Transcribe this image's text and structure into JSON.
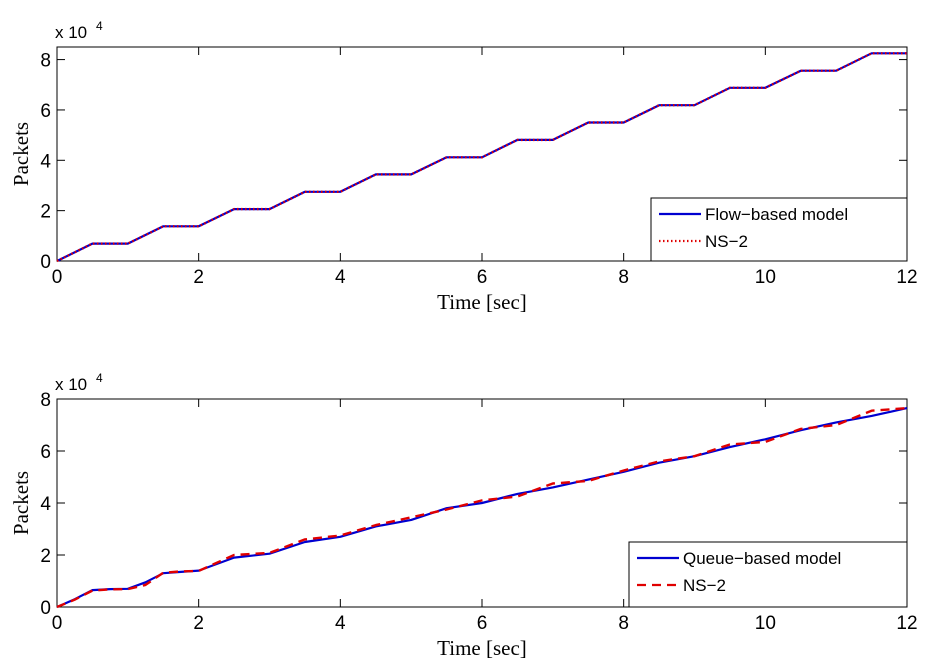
{
  "chart_data": [
    {
      "type": "line",
      "xlabel": "Time [sec]",
      "ylabel": "Packets",
      "xlim": [
        0,
        12
      ],
      "ylim": [
        0,
        85000
      ],
      "xticks": [
        0,
        2,
        4,
        6,
        8,
        10,
        12
      ],
      "yticks": [
        0,
        20000,
        40000,
        60000,
        80000
      ],
      "ytick_labels": [
        "0",
        "2",
        "4",
        "6",
        "8"
      ],
      "y_multiplier": {
        "base": "x 10",
        "exponent": "4"
      },
      "legend_position": "bottom-right",
      "grid": false,
      "series": [
        {
          "name": "Flow−based model",
          "color": "#0000d0",
          "style": "solid",
          "x": [
            0,
            0.5,
            1,
            1.5,
            2,
            2.5,
            3,
            3.5,
            4,
            4.5,
            5,
            5.5,
            6,
            6.5,
            7,
            7.5,
            8,
            8.5,
            9,
            9.5,
            10,
            10.5,
            11,
            11.5,
            12
          ],
          "y": [
            0,
            6900,
            6900,
            13800,
            13800,
            20600,
            20600,
            27500,
            27500,
            34400,
            34400,
            41200,
            41200,
            48100,
            48100,
            55000,
            55000,
            61900,
            61900,
            68800,
            68800,
            75600,
            75600,
            82500,
            82500
          ]
        },
        {
          "name": "NS−2",
          "color": "#e00000",
          "style": "dotted",
          "x": [
            0,
            0.5,
            1,
            1.5,
            2,
            2.5,
            3,
            3.5,
            4,
            4.5,
            5,
            5.5,
            6,
            6.5,
            7,
            7.5,
            8,
            8.5,
            9,
            9.5,
            10,
            10.5,
            11,
            11.5,
            12
          ],
          "y": [
            0,
            6900,
            6900,
            13800,
            13800,
            20600,
            20600,
            27500,
            27500,
            34400,
            34400,
            41200,
            41200,
            48100,
            48100,
            55000,
            55000,
            61900,
            61900,
            68800,
            68800,
            75600,
            75600,
            82500,
            82500
          ]
        }
      ]
    },
    {
      "type": "line",
      "xlabel": "Time [sec]",
      "ylabel": "Packets",
      "xlim": [
        0,
        12
      ],
      "ylim": [
        0,
        80000
      ],
      "xticks": [
        0,
        2,
        4,
        6,
        8,
        10,
        12
      ],
      "yticks": [
        0,
        20000,
        40000,
        60000,
        80000
      ],
      "ytick_labels": [
        "0",
        "2",
        "4",
        "6",
        "8"
      ],
      "y_multiplier": {
        "base": "x 10",
        "exponent": "4"
      },
      "legend_position": "bottom-right",
      "grid": false,
      "series": [
        {
          "name": "Queue−based model",
          "color": "#0000d0",
          "style": "solid",
          "x": [
            0,
            0.25,
            0.5,
            0.75,
            1,
            1.25,
            1.5,
            1.75,
            2,
            2.5,
            3,
            3.5,
            4,
            4.5,
            5,
            5.5,
            6,
            6.5,
            7,
            7.5,
            8,
            8.5,
            9,
            9.5,
            10,
            10.5,
            11,
            11.5,
            12
          ],
          "y": [
            0,
            3000,
            6500,
            6900,
            7000,
            9500,
            13000,
            13500,
            14000,
            19000,
            20500,
            25000,
            27000,
            31000,
            33500,
            38000,
            40000,
            43500,
            46000,
            49000,
            52000,
            55500,
            58000,
            61500,
            64500,
            68000,
            71000,
            73500,
            76500
          ]
        },
        {
          "name": "NS−2",
          "color": "#e00000",
          "style": "dashed",
          "x": [
            0,
            0.25,
            0.5,
            0.75,
            1,
            1.25,
            1.5,
            1.75,
            2,
            2.5,
            3,
            3.5,
            4,
            4.5,
            5,
            5.5,
            6,
            6.5,
            7,
            7.5,
            8,
            8.5,
            9,
            9.5,
            10,
            10.5,
            11,
            11.5,
            12
          ],
          "y": [
            0,
            2800,
            6300,
            6800,
            6900,
            8500,
            13200,
            13700,
            13900,
            20000,
            20800,
            26000,
            27500,
            31500,
            34500,
            37500,
            41000,
            42500,
            47500,
            48500,
            52500,
            56000,
            58000,
            62500,
            63500,
            68500,
            70000,
            75500,
            76500
          ]
        }
      ]
    }
  ]
}
